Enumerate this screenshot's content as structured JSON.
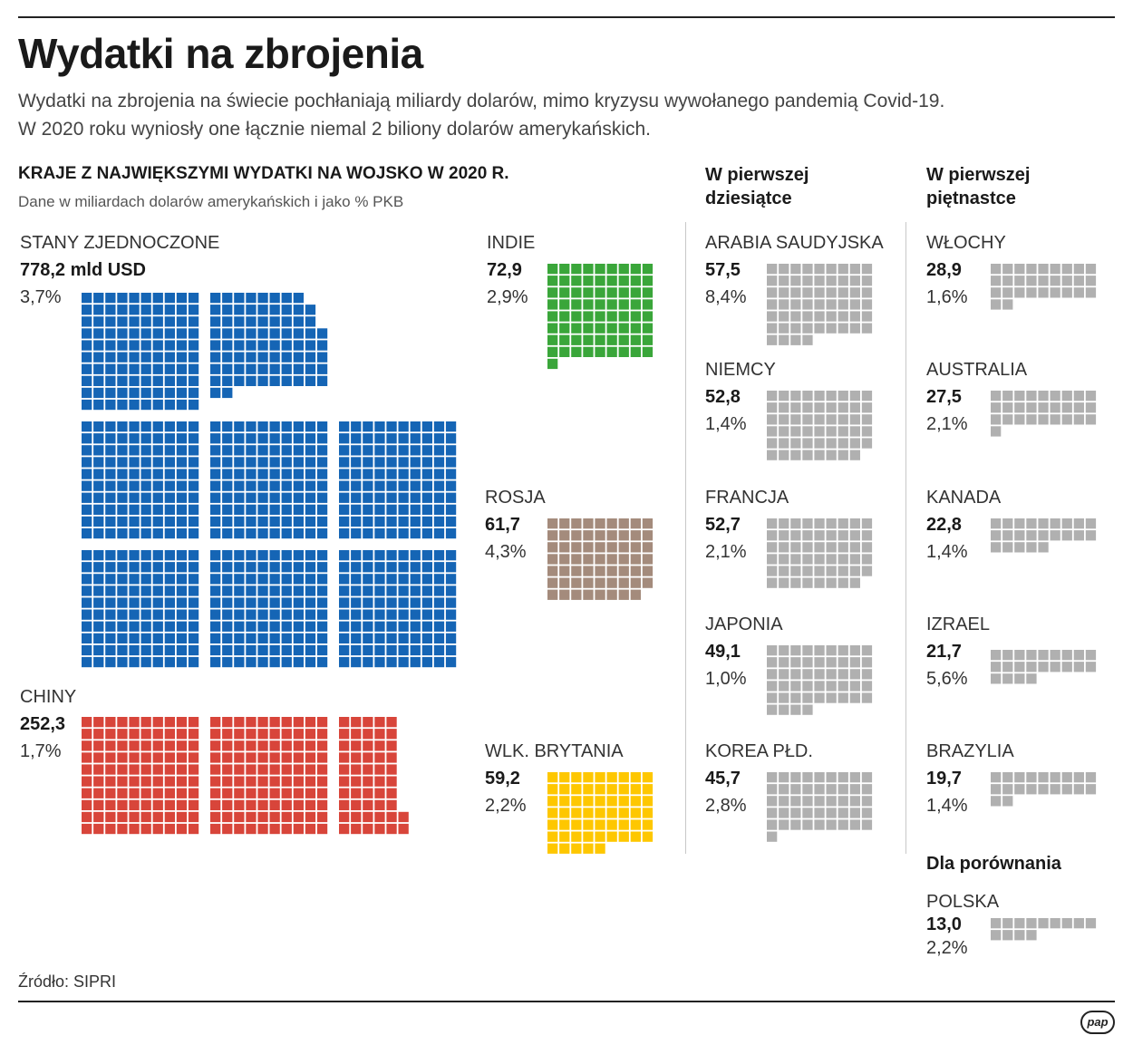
{
  "header": {
    "title": "Wydatki na zbrojenia",
    "subtitle_line1": "Wydatki na zbrojenia na świecie pochłaniają miliardy dolarów, mimo kryzysu wywołanego pandemią Covid-19.",
    "subtitle_line2": "W 2020 roku wyniosły one łącznie niemal 2 biliony dolarów amerykańskich."
  },
  "section": {
    "heading": "KRAJE Z NAJWIĘKSZYMI WYDATKI NA WOJSKO W 2020 R.",
    "note": "Dane w miliardach dolarów amerykańskich i jako % PKB"
  },
  "columns": {
    "top10_line1": "W pierwszej",
    "top10_line2": "dziesiątce",
    "top15_line1": "W pierwszej",
    "top15_line2": "piętnastce",
    "comparison": "Dla porównania"
  },
  "source": "Źródło: SIPRI",
  "logo": "pap",
  "colors": {
    "usa": "#1565b5",
    "china": "#d8453a",
    "india": "#3aa63a",
    "russia": "#a48b7c",
    "uk": "#fec700",
    "others": "#b0b0b0"
  },
  "chart_data": {
    "type": "waffle",
    "unit": "mld USD",
    "countries": [
      {
        "name": "STANY ZJEDNOCZONE",
        "value": 778.2,
        "value_label": "778,2 mld USD",
        "gdp_pct": "3,7%",
        "color": "usa"
      },
      {
        "name": "CHINY",
        "value": 252.3,
        "value_label": "252,3",
        "gdp_pct": "1,7%",
        "color": "china"
      },
      {
        "name": "INDIE",
        "value": 72.9,
        "value_label": "72,9",
        "gdp_pct": "2,9%",
        "color": "india"
      },
      {
        "name": "ROSJA",
        "value": 61.7,
        "value_label": "61,7",
        "gdp_pct": "4,3%",
        "color": "russia"
      },
      {
        "name": "WLK. BRYTANIA",
        "value": 59.2,
        "value_label": "59,2",
        "gdp_pct": "2,2%",
        "color": "uk"
      },
      {
        "name": "ARABIA SAUDYJSKA",
        "value": 57.5,
        "value_label": "57,5",
        "gdp_pct": "8,4%",
        "color": "others"
      },
      {
        "name": "NIEMCY",
        "value": 52.8,
        "value_label": "52,8",
        "gdp_pct": "1,4%",
        "color": "others"
      },
      {
        "name": "FRANCJA",
        "value": 52.7,
        "value_label": "52,7",
        "gdp_pct": "2,1%",
        "color": "others"
      },
      {
        "name": "JAPONIA",
        "value": 49.1,
        "value_label": "49,1",
        "gdp_pct": "1,0%",
        "color": "others"
      },
      {
        "name": "KOREA PŁD.",
        "value": 45.7,
        "value_label": "45,7",
        "gdp_pct": "2,8%",
        "color": "others"
      },
      {
        "name": "WŁOCHY",
        "value": 28.9,
        "value_label": "28,9",
        "gdp_pct": "1,6%",
        "color": "others"
      },
      {
        "name": "AUSTRALIA",
        "value": 27.5,
        "value_label": "27,5",
        "gdp_pct": "2,1%",
        "color": "others"
      },
      {
        "name": "KANADA",
        "value": 22.8,
        "value_label": "22,8",
        "gdp_pct": "1,4%",
        "color": "others"
      },
      {
        "name": "IZRAEL",
        "value": 21.7,
        "value_label": "21,7",
        "gdp_pct": "5,6%",
        "color": "others"
      },
      {
        "name": "BRAZYLIA",
        "value": 19.7,
        "value_label": "19,7",
        "gdp_pct": "1,4%",
        "color": "others"
      },
      {
        "name": "POLSKA",
        "value": 13.0,
        "value_label": "13,0",
        "gdp_pct": "2,2%",
        "color": "others"
      }
    ]
  }
}
